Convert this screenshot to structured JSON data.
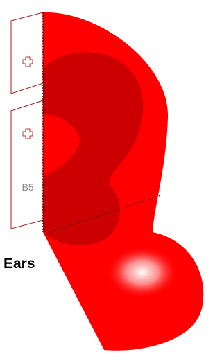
{
  "labels": {
    "region": "B5",
    "title": "Ears"
  }
}
